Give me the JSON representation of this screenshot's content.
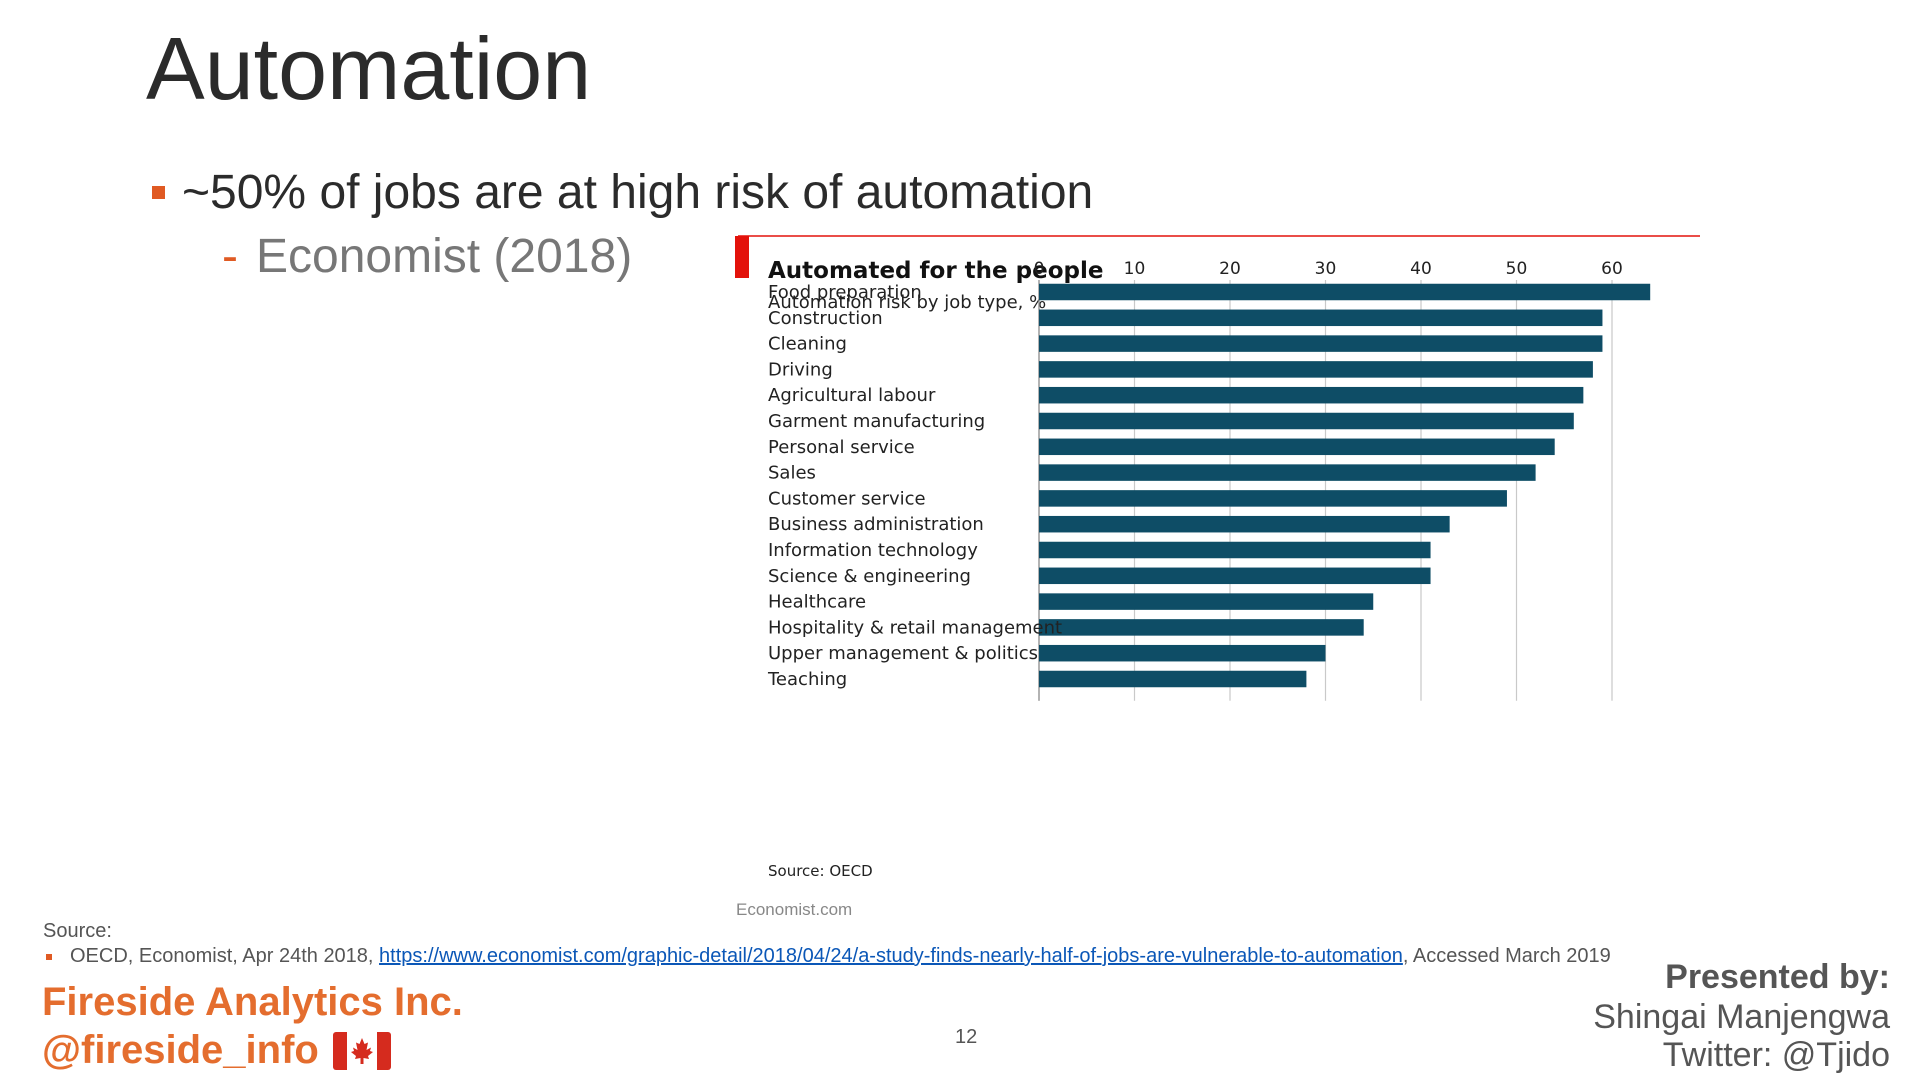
{
  "slide": {
    "title": "Automation",
    "bullet": "~50% of jobs are at high risk of automation",
    "sub_dash": "-",
    "sub_bullet": "Economist (2018)",
    "economist_credit": "Economist.com",
    "page_number": "12",
    "colors": {
      "accent": "#e05a23",
      "bar": "#0e4d66",
      "title_rule": "#e3120b"
    }
  },
  "footer": {
    "source_heading": "Source:",
    "source_prefix": "OECD, Economist, Apr 24th 2018, ",
    "source_link": "https://www.economist.com/graphic-detail/2018/04/24/a-study-finds-nearly-half-of-jobs-are-vulnerable-to-automation",
    "source_suffix": ", Accessed March 2019",
    "company": "Fireside Analytics Inc.",
    "handle": "@fireside_info",
    "flag_icon": "canada-flag-icon",
    "presented_by": "Presented by:",
    "presenter": "Shingai Manjengwa",
    "twitter": "Twitter: @Tjido"
  },
  "chart_data": {
    "type": "bar",
    "orientation": "horizontal",
    "title": "Automated for the people",
    "subtitle": "Automation risk by job type, %",
    "source": "Source: OECD",
    "categories": [
      "Food preparation",
      "Construction",
      "Cleaning",
      "Driving",
      "Agricultural labour",
      "Garment manufacturing",
      "Personal service",
      "Sales",
      "Customer service",
      "Business administration",
      "Information technology",
      "Science & engineering",
      "Healthcare",
      "Hospitality & retail management",
      "Upper management & politics",
      "Teaching"
    ],
    "values": [
      64,
      59,
      59,
      58,
      57,
      56,
      54,
      52,
      49,
      43,
      41,
      41,
      35,
      34,
      30,
      28
    ],
    "xlim": [
      0,
      65
    ],
    "ticks": [
      0,
      10,
      20,
      30,
      40,
      50,
      60
    ],
    "grid": true,
    "axis_position": "top"
  }
}
